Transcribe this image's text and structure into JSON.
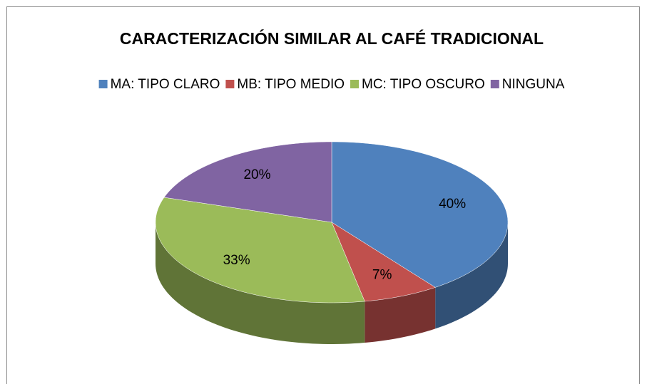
{
  "chart_data": {
    "type": "pie3d",
    "title": "CARACTERIZACIÓN SIMILAR AL CAFÉ TRADICIONAL",
    "categories": [
      "MA: TIPO CLARO",
      "MB: TIPO MEDIO",
      "MC: TIPO OSCURO",
      "NINGUNA"
    ],
    "values": [
      40,
      7,
      33,
      20
    ],
    "value_labels": [
      "40%",
      "7%",
      "33%",
      "20%"
    ],
    "colors": [
      "#4f81bd",
      "#c0504d",
      "#9bbb59",
      "#8064a2"
    ],
    "legend": "top"
  }
}
